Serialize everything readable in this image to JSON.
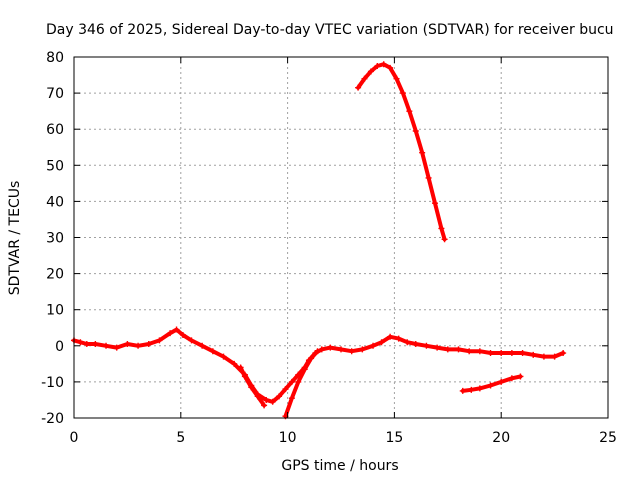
{
  "chart_data": {
    "type": "scatter",
    "title": "Day 346 of 2025, Sidereal Day-to-day VTEC variation (SDTVAR) for receiver bucu",
    "xlabel": "GPS time / hours",
    "ylabel": "SDTVAR / TECUs",
    "xlim": [
      0,
      25
    ],
    "ylim": [
      -20,
      80
    ],
    "xticks": [
      "0",
      "5",
      "10",
      "15",
      "20",
      "25"
    ],
    "yticks": [
      "-20",
      "-10",
      "0",
      "10",
      "20",
      "30",
      "40",
      "50",
      "60",
      "70",
      "80"
    ],
    "grid": true,
    "color": "#ff0000",
    "series": [
      {
        "name": "main-track",
        "x": [
          0.0,
          0.3,
          0.6,
          1.0,
          1.5,
          2.0,
          2.5,
          3.0,
          3.5,
          4.0,
          4.5,
          4.8,
          5.1,
          5.5,
          6.0,
          6.5,
          7.0,
          7.5,
          8.0,
          8.3,
          8.6,
          9.0,
          9.3,
          9.6,
          9.9,
          10.2,
          10.5,
          10.8,
          11.0,
          11.3,
          11.6,
          12.0,
          12.5,
          13.0,
          13.5,
          14.0,
          14.4,
          14.8,
          15.2,
          15.6,
          16.0,
          16.5,
          17.0,
          17.5,
          18.0,
          18.5,
          19.0,
          19.5,
          20.0,
          20.5,
          21.0,
          21.5,
          22.0,
          22.5,
          22.9
        ],
        "y": [
          1.5,
          1.0,
          0.5,
          0.5,
          0.0,
          -0.5,
          0.5,
          0.0,
          0.5,
          1.5,
          3.5,
          4.5,
          3.0,
          1.5,
          0.0,
          -1.5,
          -3.0,
          -5.0,
          -8.0,
          -11.0,
          -13.5,
          -15.0,
          -15.5,
          -14.0,
          -12.0,
          -10.0,
          -8.0,
          -6.0,
          -4.0,
          -2.0,
          -1.0,
          -0.5,
          -1.0,
          -1.5,
          -1.0,
          0.0,
          1.0,
          2.5,
          2.0,
          1.0,
          0.5,
          0.0,
          -0.5,
          -1.0,
          -1.0,
          -1.5,
          -1.5,
          -2.0,
          -2.0,
          -2.0,
          -2.0,
          -2.5,
          -3.0,
          -3.0,
          -2.0
        ]
      },
      {
        "name": "upper-arc",
        "x": [
          13.3,
          13.6,
          13.9,
          14.2,
          14.5,
          14.8,
          15.1,
          15.4,
          15.7,
          16.0,
          16.3,
          16.6,
          16.9,
          17.2,
          17.35
        ],
        "y": [
          71.5,
          74.0,
          76.0,
          77.5,
          78.0,
          77.0,
          74.0,
          70.0,
          65.0,
          59.5,
          53.5,
          46.5,
          39.5,
          32.5,
          29.5
        ]
      },
      {
        "name": "lower-segment",
        "x": [
          18.2,
          18.6,
          19.0,
          19.5,
          20.0,
          20.5,
          20.9
        ],
        "y": [
          -12.5,
          -12.2,
          -11.8,
          -11.0,
          -10.0,
          -9.0,
          -8.5
        ]
      },
      {
        "name": "dip-branch",
        "x": [
          7.8,
          8.0,
          8.3,
          8.6,
          8.9
        ],
        "y": [
          -6.0,
          -8.5,
          -11.5,
          -14.0,
          -16.5
        ]
      },
      {
        "name": "recovery-branch",
        "x": [
          9.9,
          10.2,
          10.5,
          10.8,
          11.1,
          11.4
        ],
        "y": [
          -19.5,
          -14.5,
          -10.0,
          -6.5,
          -3.5,
          -1.5
        ]
      }
    ]
  }
}
